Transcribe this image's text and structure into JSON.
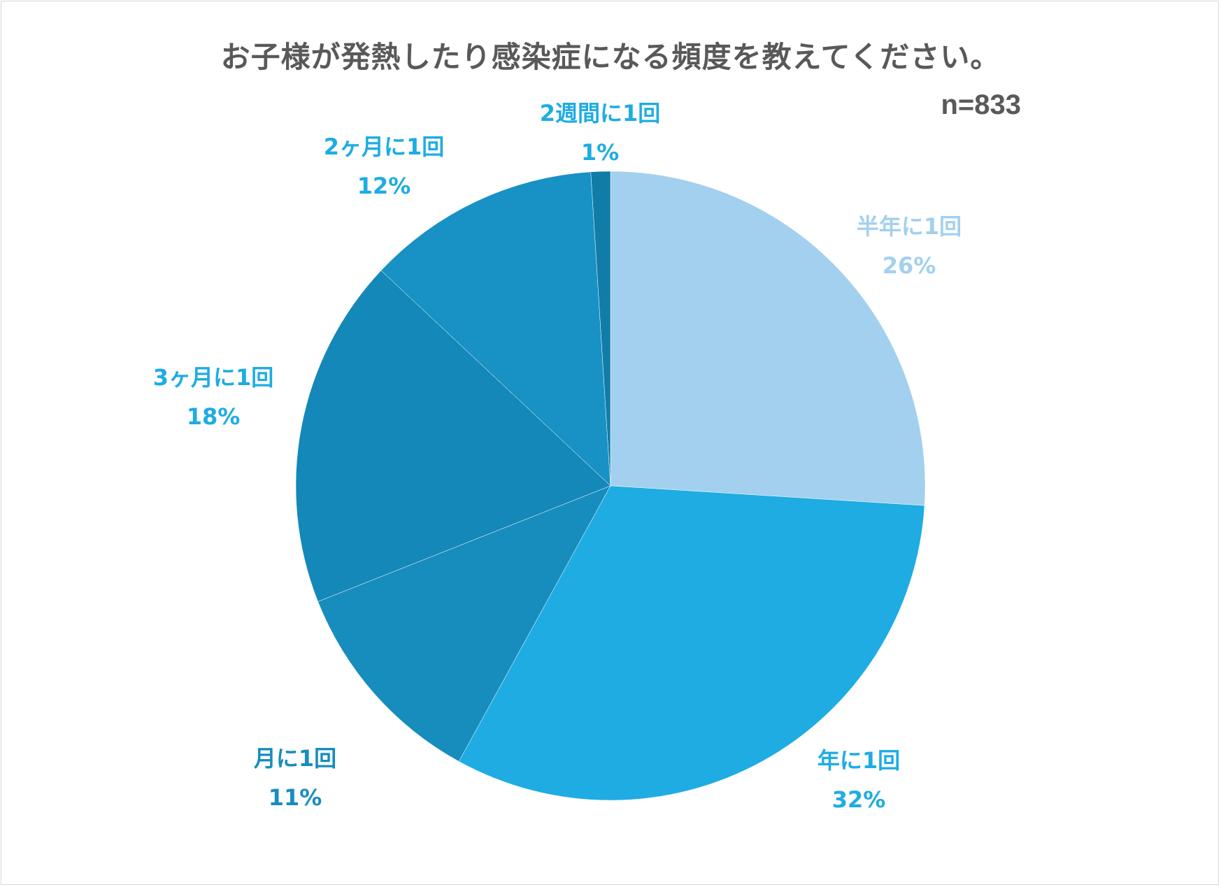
{
  "chart_data": {
    "type": "pie",
    "title": "お子様が発熱したり感染症になる頻度を教えてください。",
    "sample_size": "n=833",
    "start_angle_deg": 0,
    "direction": "clockwise",
    "slices": [
      {
        "label": "半年に1回",
        "value": 26,
        "value_label": "26%",
        "color": "#A3D0EE",
        "label_color": "#A3D0EE"
      },
      {
        "label": "年に1回",
        "value": 32,
        "value_label": "32%",
        "color": "#1EACE3",
        "label_color": "#1EACE3"
      },
      {
        "label": "月に1回",
        "value": 11,
        "value_label": "11%",
        "color": "#178DBE",
        "label_color": "#178DBE"
      },
      {
        "label": "3ヶ月に1回",
        "value": 18,
        "value_label": "18%",
        "color": "#1488B8",
        "label_color": "#1EACE3"
      },
      {
        "label": "2ヶ月に1回",
        "value": 12,
        "value_label": "12%",
        "color": "#1891C4",
        "label_color": "#1EACE3"
      },
      {
        "label": "2週間に1回",
        "value": 1,
        "value_label": "1%",
        "color": "#117CA8",
        "label_color": "#1EACE3"
      }
    ]
  }
}
